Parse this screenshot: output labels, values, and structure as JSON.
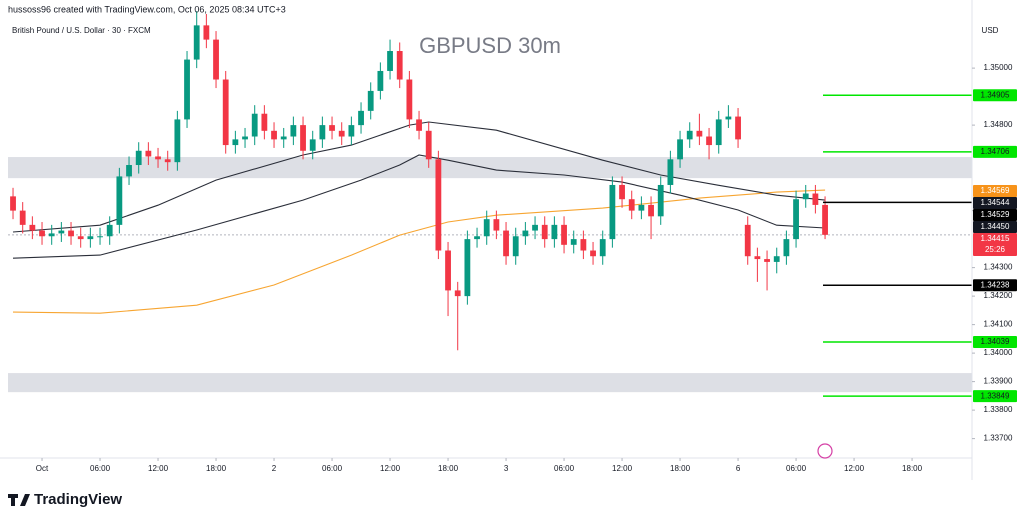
{
  "chart_data": {
    "type": "candlestick",
    "title": "GBPUSD 30m",
    "subtitle": "British Pound / U.S. Dollar · 30 · FXCM",
    "attribution": "hussoss96 created with TradingView.com, Oct 06, 2025 08:34 UTC+3",
    "currency": "USD",
    "brand": "TradingView",
    "up_color": "#089981",
    "down_color": "#f23645",
    "x": [
      -3,
      -2,
      -1,
      0,
      1,
      2,
      3,
      4,
      5,
      6,
      7,
      8,
      9,
      10,
      11,
      12,
      13,
      14,
      15,
      16,
      17,
      18,
      19,
      20,
      21,
      22,
      23,
      24,
      25,
      26,
      27,
      28,
      29,
      30,
      31,
      32,
      33,
      34,
      35,
      36,
      37,
      38,
      39,
      40,
      41,
      42,
      43,
      44,
      45,
      46,
      47,
      48,
      49,
      50,
      51,
      52,
      53,
      54,
      55,
      56,
      57,
      58,
      59,
      60,
      61,
      62,
      63,
      64,
      65,
      66,
      67,
      68,
      69,
      70,
      71,
      72,
      73,
      74,
      75,
      76,
      77,
      78,
      79,
      80,
      81
    ],
    "open": [
      1.3455,
      1.345,
      1.3445,
      1.3443,
      1.3441,
      1.3442,
      1.3443,
      1.3441,
      1.344,
      1.3441,
      1.3441,
      1.3445,
      1.3462,
      1.3466,
      1.3471,
      1.3469,
      1.3468,
      1.3467,
      1.3482,
      1.3503,
      1.3515,
      1.351,
      1.3496,
      1.3473,
      1.3475,
      1.3476,
      1.3484,
      1.3478,
      1.3475,
      1.3476,
      1.348,
      1.3471,
      1.3475,
      1.348,
      1.3478,
      1.3476,
      1.348,
      1.3485,
      1.3492,
      1.3499,
      1.3506,
      1.3496,
      1.3482,
      1.3478,
      1.3468,
      1.3436,
      1.3422,
      1.342,
      1.344,
      1.3441,
      1.3447,
      1.3443,
      1.3434,
      1.3441,
      1.3443,
      1.3445,
      1.344,
      1.3445,
      1.3438,
      1.344,
      1.3436,
      1.3434,
      1.344,
      1.3459,
      1.3454,
      1.345,
      1.3452,
      1.3448,
      1.3459,
      1.3468,
      1.3475,
      1.3478,
      1.3476,
      1.3473,
      1.3482,
      1.3483,
      1.3445,
      1.3434,
      1.3433,
      1.3432,
      1.3434,
      1.344,
      1.3454,
      1.3456,
      1.3452
    ],
    "high": [
      1.3458,
      1.3453,
      1.3448,
      1.3446,
      1.3445,
      1.3446,
      1.3446,
      1.3444,
      1.3444,
      1.3444,
      1.3448,
      1.3465,
      1.3469,
      1.3474,
      1.3474,
      1.3472,
      1.3471,
      1.3485,
      1.3506,
      1.352,
      1.3519,
      1.3513,
      1.3499,
      1.3478,
      1.3479,
      1.3487,
      1.3487,
      1.3481,
      1.3479,
      1.3483,
      1.3483,
      1.3478,
      1.3483,
      1.3483,
      1.3481,
      1.3483,
      1.3488,
      1.3495,
      1.3502,
      1.351,
      1.3509,
      1.3499,
      1.3485,
      1.3481,
      1.3471,
      1.3439,
      1.3425,
      1.3443,
      1.3444,
      1.345,
      1.345,
      1.3446,
      1.3444,
      1.3446,
      1.3448,
      1.3448,
      1.3448,
      1.3448,
      1.3443,
      1.3443,
      1.3439,
      1.3443,
      1.3462,
      1.3462,
      1.3457,
      1.3455,
      1.3455,
      1.3462,
      1.3471,
      1.3478,
      1.3481,
      1.3484,
      1.3479,
      1.3485,
      1.3487,
      1.3486,
      1.3448,
      1.3437,
      1.3436,
      1.3437,
      1.3443,
      1.3457,
      1.3459,
      1.3459,
      1.3455
    ],
    "low": [
      1.3447,
      1.3442,
      1.344,
      1.3438,
      1.3438,
      1.3439,
      1.3438,
      1.3437,
      1.3437,
      1.3438,
      1.3438,
      1.3442,
      1.3459,
      1.3463,
      1.3466,
      1.3465,
      1.3464,
      1.3464,
      1.3479,
      1.35,
      1.3507,
      1.3493,
      1.347,
      1.347,
      1.3472,
      1.3473,
      1.3475,
      1.3472,
      1.3472,
      1.3473,
      1.3468,
      1.3468,
      1.3472,
      1.3475,
      1.3473,
      1.3473,
      1.3477,
      1.3482,
      1.3489,
      1.3496,
      1.3493,
      1.3479,
      1.3475,
      1.3465,
      1.3433,
      1.3413,
      1.3401,
      1.3417,
      1.3437,
      1.3438,
      1.344,
      1.3431,
      1.3431,
      1.3438,
      1.344,
      1.3437,
      1.3437,
      1.3435,
      1.3435,
      1.3433,
      1.3431,
      1.3431,
      1.3437,
      1.3451,
      1.3447,
      1.3447,
      1.344,
      1.3445,
      1.3456,
      1.3465,
      1.3472,
      1.3473,
      1.3468,
      1.347,
      1.3479,
      1.3472,
      1.3431,
      1.3425,
      1.3422,
      1.3428,
      1.3431,
      1.3437,
      1.3451,
      1.3449,
      1.344
    ],
    "close": [
      1.345,
      1.3445,
      1.3443,
      1.3441,
      1.3442,
      1.3443,
      1.3441,
      1.344,
      1.3441,
      1.3441,
      1.3445,
      1.3462,
      1.3466,
      1.3471,
      1.3469,
      1.3468,
      1.3467,
      1.3482,
      1.3503,
      1.3515,
      1.351,
      1.3496,
      1.3473,
      1.3475,
      1.3476,
      1.3484,
      1.3478,
      1.3475,
      1.3476,
      1.348,
      1.3471,
      1.3475,
      1.348,
      1.3478,
      1.3476,
      1.348,
      1.3485,
      1.3492,
      1.3499,
      1.3506,
      1.3496,
      1.3482,
      1.3478,
      1.3468,
      1.3436,
      1.3422,
      1.342,
      1.344,
      1.3441,
      1.3447,
      1.3443,
      1.3434,
      1.3441,
      1.3443,
      1.3445,
      1.344,
      1.3445,
      1.3438,
      1.344,
      1.3436,
      1.3434,
      1.344,
      1.3459,
      1.3454,
      1.345,
      1.3452,
      1.3448,
      1.3459,
      1.3468,
      1.3475,
      1.3478,
      1.3476,
      1.3473,
      1.3482,
      1.3483,
      1.3475,
      1.3434,
      1.3433,
      1.3432,
      1.3434,
      1.344,
      1.3454,
      1.3456,
      1.3452,
      1.34415
    ],
    "moving_averages": [
      {
        "color": "#f7a531",
        "x": [
          -3,
          6,
          16,
          24,
          32,
          37,
          42,
          47,
          58,
          68,
          76,
          81
        ],
        "values": [
          1.34144,
          1.3414,
          1.34168,
          1.34239,
          1.34344,
          1.34414,
          1.3446,
          1.34484,
          1.34509,
          1.34544,
          1.34565,
          1.34572
        ]
      },
      {
        "color": "#2a2e39",
        "x": [
          -3,
          6,
          12,
          18,
          27,
          32,
          38,
          40,
          47,
          58,
          64,
          70,
          76,
          81
        ],
        "values": [
          1.34425,
          1.34449,
          1.34519,
          1.34607,
          1.34695,
          1.3473,
          1.348,
          1.34811,
          1.34782,
          1.34677,
          1.34625,
          1.34589,
          1.34554,
          1.34537
        ]
      },
      {
        "color": "#2a2e39",
        "x": [
          -3,
          6,
          16,
          27,
          33,
          37,
          39,
          42,
          47,
          54,
          60,
          66,
          72,
          76,
          81
        ],
        "values": [
          1.34333,
          1.34344,
          1.34432,
          1.34537,
          1.34607,
          1.3466,
          1.34695,
          1.34677,
          1.34642,
          1.34625,
          1.346,
          1.34554,
          1.34502,
          1.34449,
          1.34439
        ]
      }
    ],
    "zones": [
      {
        "from": 1.34614,
        "to": 1.34688
      },
      {
        "from": 1.33863,
        "to": 1.3393
      }
    ],
    "levels": [
      {
        "value": 1.34905,
        "label": "1.34905",
        "color": "#00e600"
      },
      {
        "value": 1.34706,
        "label": "1.34706",
        "color": "#00e600"
      },
      {
        "value": 1.34529,
        "label": "1.34529",
        "color": "#000000"
      },
      {
        "value": 1.34238,
        "label": "1.34238",
        "color": "#000000"
      },
      {
        "value": 1.34039,
        "label": "1.34039",
        "color": "#00e600"
      },
      {
        "value": 1.33849,
        "label": "1.33849",
        "color": "#00e600"
      }
    ],
    "price_tags": [
      {
        "value": 1.34569,
        "label": "1.34569",
        "color": "#f7931a"
      },
      {
        "value": 1.34544,
        "label": "1.34544",
        "color": "#131722"
      },
      {
        "value": 1.3445,
        "label": "1.34450",
        "color": "#131722"
      }
    ],
    "last_price": {
      "value": 1.34415,
      "label": "1.34415",
      "countdown": "25:26",
      "color": "#f23645"
    },
    "xlim": [
      -3.52,
      96.2
    ],
    "ylim": [
      1.33632,
      1.35239
    ],
    "xticks": [
      {
        "value": 0,
        "label": "Oct"
      },
      {
        "value": 6,
        "label": "06:00"
      },
      {
        "value": 12,
        "label": "12:00"
      },
      {
        "value": 18,
        "label": "18:00"
      },
      {
        "value": 24,
        "label": "2"
      },
      {
        "value": 30,
        "label": "06:00"
      },
      {
        "value": 36,
        "label": "12:00"
      },
      {
        "value": 42,
        "label": "18:00"
      },
      {
        "value": 48,
        "label": "3"
      },
      {
        "value": 54,
        "label": "06:00"
      },
      {
        "value": 60,
        "label": "12:00"
      },
      {
        "value": 66,
        "label": "18:00"
      },
      {
        "value": 72,
        "label": "6"
      },
      {
        "value": 78,
        "label": "06:00"
      },
      {
        "value": 84,
        "label": "12:00"
      },
      {
        "value": 90,
        "label": "18:00"
      }
    ],
    "yticks": [
      {
        "value": 1.35,
        "label": "1.35000"
      },
      {
        "value": 1.348,
        "label": "1.34800"
      },
      {
        "value": 1.345,
        "label": "1.34500"
      },
      {
        "value": 1.343,
        "label": "1.34300"
      },
      {
        "value": 1.342,
        "label": "1.34200"
      },
      {
        "value": 1.341,
        "label": "1.34100"
      },
      {
        "value": 1.34,
        "label": "1.34000"
      },
      {
        "value": 1.339,
        "label": "1.33900"
      },
      {
        "value": 1.338,
        "label": "1.33800"
      },
      {
        "value": 1.337,
        "label": "1.33700"
      }
    ]
  }
}
